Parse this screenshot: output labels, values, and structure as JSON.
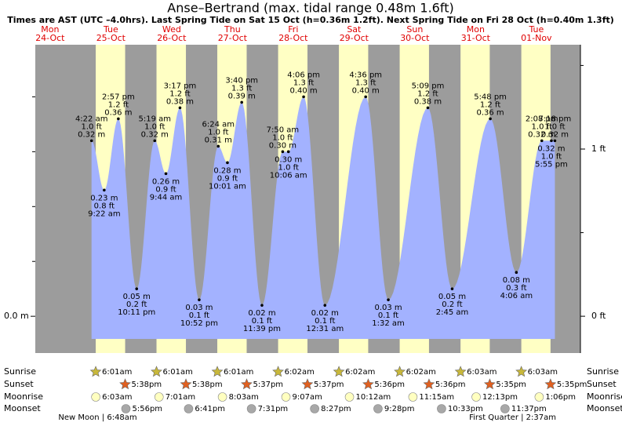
{
  "chart_data": {
    "type": "area",
    "title": "Anse–Bertrand (max. tidal range 0.48m 1.6ft)",
    "subtitle": "Times are AST (UTC –4.0hrs). Last Spring Tide on Sat 15 Oct (h=0.36m 1.2ft). Next Spring Tide on Fri 28 Oct (h=0.40m 1.3ft)",
    "ylim": [
      -0.067,
      0.495
    ],
    "yticks": [
      {
        "value": 0,
        "label": "0.0 m"
      }
    ],
    "yminor": [
      0.1,
      0.2,
      0.3,
      0.4
    ],
    "y2lim": [
      -0.22,
      1.624
    ],
    "y2ticks": [
      {
        "value": 0,
        "label": "0 ft"
      },
      {
        "value": 1,
        "label": "1 ft"
      }
    ],
    "y2minor": [
      0.5,
      1.5
    ],
    "colors": {
      "night": "#9c9c9c",
      "day": "#ffffc4",
      "water": "#a3b2ff",
      "date": "#e00000",
      "sunrise": "#c8b83a",
      "sunset": "#e06020",
      "moonrise": "#ffffc0",
      "moonset": "#a8a8a8"
    },
    "rows": [
      "Sunrise",
      "Sunset",
      "Moonrise",
      "Moonset"
    ],
    "days": [
      {
        "weekday": "Mon",
        "date": "24-Oct"
      },
      {
        "weekday": "Tue",
        "date": "25-Oct",
        "sunrise": "6:01am",
        "sunset": "5:38pm",
        "moonrise": "6:03am",
        "moonset": "5:56pm",
        "moon_phase": "New Moon | 6:48am",
        "tides": [
          {
            "time": "4:22 am",
            "value": 0.32,
            "value_label": "0.32 m",
            "ft_label": "1.0 ft"
          },
          {
            "time": "9:22 am",
            "value": 0.23,
            "value_label": "0.23 m",
            "ft_label": "0.8 ft"
          },
          {
            "time": "2:57 pm",
            "value": 0.36,
            "value_label": "0.36 m",
            "ft_label": "1.2 ft"
          },
          {
            "time": "10:11 pm",
            "value": 0.05,
            "value_label": "0.05 m",
            "ft_label": "0.2 ft"
          }
        ]
      },
      {
        "weekday": "Wed",
        "date": "26-Oct",
        "sunrise": "6:01am",
        "sunset": "5:38pm",
        "moonrise": "7:01am",
        "moonset": "6:41pm",
        "tides": [
          {
            "time": "5:19 am",
            "value": 0.32,
            "value_label": "0.32 m",
            "ft_label": "1.0 ft"
          },
          {
            "time": "9:44 am",
            "value": 0.26,
            "value_label": "0.26 m",
            "ft_label": "0.9 ft"
          },
          {
            "time": "3:17 pm",
            "value": 0.38,
            "value_label": "0.38 m",
            "ft_label": "1.2 ft"
          },
          {
            "time": "10:52 pm",
            "value": 0.03,
            "value_label": "0.03 m",
            "ft_label": "0.1 ft"
          }
        ]
      },
      {
        "weekday": "Thu",
        "date": "27-Oct",
        "sunrise": "6:01am",
        "sunset": "5:37pm",
        "moonrise": "8:03am",
        "moonset": "7:31pm",
        "tides": [
          {
            "time": "6:24 am",
            "value": 0.31,
            "value_label": "0.31 m",
            "ft_label": "1.0 ft"
          },
          {
            "time": "10:01 am",
            "value": 0.28,
            "value_label": "0.28 m",
            "ft_label": "0.9 ft"
          },
          {
            "time": "3:40 pm",
            "value": 0.39,
            "value_label": "0.39 m",
            "ft_label": "1.3 ft"
          },
          {
            "time": "11:39 pm",
            "value": 0.02,
            "value_label": "0.02 m",
            "ft_label": "0.1 ft"
          }
        ]
      },
      {
        "weekday": "Fri",
        "date": "28-Oct",
        "sunrise": "6:02am",
        "sunset": "5:37pm",
        "moonrise": "9:07am",
        "moonset": "8:27pm",
        "tides": [
          {
            "time": "7:50 am",
            "value": 0.3,
            "value_label": "0.30 m",
            "ft_label": "1.0 ft"
          },
          {
            "time": "10:06 am",
            "value": 0.3,
            "value_label": "0.30 m",
            "ft_label": "1.0 ft"
          },
          {
            "time": "4:06 pm",
            "value": 0.4,
            "value_label": "0.40 m",
            "ft_label": "1.3 ft"
          }
        ]
      },
      {
        "weekday": "Sat",
        "date": "29-Oct",
        "sunrise": "6:02am",
        "sunset": "5:36pm",
        "moonrise": "10:12am",
        "moonset": "9:28pm",
        "tides": [
          {
            "time": "12:31 am",
            "value": 0.02,
            "value_label": "0.02 m",
            "ft_label": "0.1 ft"
          },
          {
            "time": "4:36 pm",
            "value": 0.4,
            "value_label": "0.40 m",
            "ft_label": "1.3 ft"
          }
        ]
      },
      {
        "weekday": "Sun",
        "date": "30-Oct",
        "sunrise": "6:02am",
        "sunset": "5:36pm",
        "moonrise": "11:15am",
        "moonset": "10:33pm",
        "tides": [
          {
            "time": "1:32 am",
            "value": 0.03,
            "value_label": "0.03 m",
            "ft_label": "0.1 ft"
          },
          {
            "time": "5:09 pm",
            "value": 0.38,
            "value_label": "0.38 m",
            "ft_label": "1.2 ft"
          }
        ]
      },
      {
        "weekday": "Mon",
        "date": "31-Oct",
        "sunrise": "6:03am",
        "sunset": "5:35pm",
        "moonrise": "12:13pm",
        "moonset": "11:37pm",
        "tides": [
          {
            "time": "2:45 am",
            "value": 0.05,
            "value_label": "0.05 m",
            "ft_label": "0.2 ft"
          },
          {
            "time": "5:48 pm",
            "value": 0.36,
            "value_label": "0.36 m",
            "ft_label": "1.2 ft"
          }
        ]
      },
      {
        "weekday": "Tue",
        "date": "01-Nov",
        "sunrise": "6:03am",
        "sunset": "5:35pm",
        "moonrise": "1:06pm",
        "moon_phase": "First Quarter | 2:37am",
        "tides": [
          {
            "time": "4:06 am",
            "value": 0.08,
            "value_label": "0.08 m",
            "ft_label": "0.3 ft"
          },
          {
            "time": "2:08 pm",
            "value": 0.32,
            "value_label": "0.32 m",
            "ft_label": "1.0 ft"
          },
          {
            "time": "5:55 pm",
            "value": 0.32,
            "value_label": "0.32 m",
            "ft_label": "1.0 ft"
          },
          {
            "time": "7:18 pm",
            "value": 0.32,
            "value_label": "0.32 m",
            "ft_label": "1.0 ft"
          }
        ]
      }
    ]
  }
}
